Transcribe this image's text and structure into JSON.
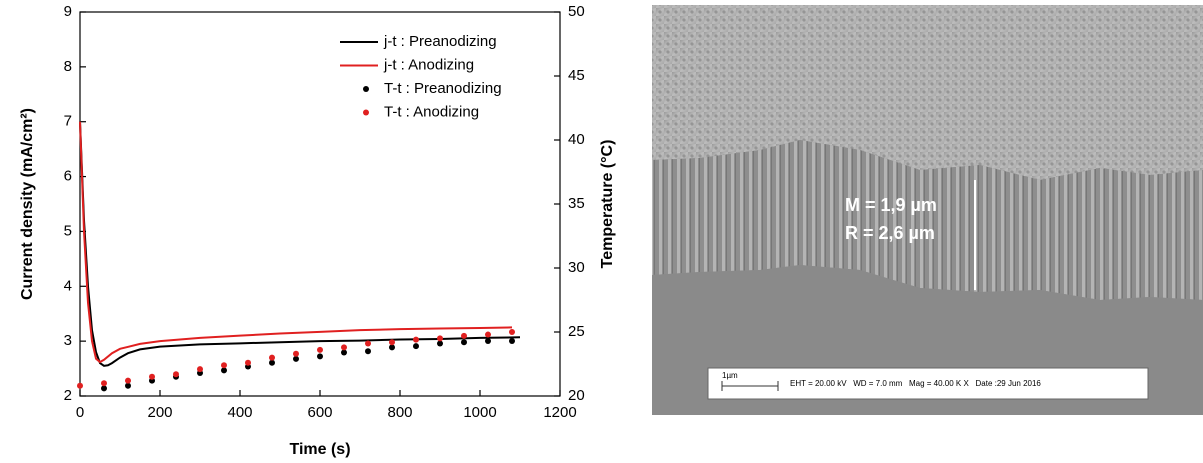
{
  "chart_data": {
    "type": "line",
    "xlabel": "Time (s)",
    "ylabel": "Current density (mA/cm²)",
    "y2label": "Temperature (°C)",
    "xlim": [
      0,
      1200
    ],
    "xticks": [
      0,
      200,
      400,
      600,
      800,
      1000,
      1200
    ],
    "ylim": [
      2,
      9
    ],
    "yticks": [
      2,
      3,
      4,
      5,
      6,
      7,
      8,
      9
    ],
    "y2lim": [
      20,
      50
    ],
    "y2ticks": [
      20,
      25,
      30,
      35,
      40,
      45,
      50
    ],
    "legend": "upper right",
    "series": [
      {
        "name": "j-t : Preanodizing",
        "color": "#000000",
        "type": "line",
        "x": [
          0,
          10,
          20,
          30,
          40,
          50,
          60,
          70,
          80,
          100,
          120,
          150,
          200,
          300,
          400,
          500,
          600,
          700,
          800,
          900,
          1000,
          1100
        ],
        "values": [
          7.0,
          5.2,
          4.0,
          3.2,
          2.8,
          2.6,
          2.55,
          2.56,
          2.6,
          2.7,
          2.78,
          2.85,
          2.9,
          2.94,
          2.96,
          2.98,
          3.0,
          3.01,
          3.03,
          3.04,
          3.06,
          3.07
        ]
      },
      {
        "name": "j-t : Anodizing",
        "color": "#e02020",
        "type": "line",
        "x": [
          0,
          10,
          20,
          30,
          40,
          50,
          60,
          80,
          100,
          150,
          200,
          300,
          400,
          500,
          600,
          700,
          800,
          900,
          1000,
          1080
        ],
        "values": [
          7.0,
          5.0,
          3.7,
          3.0,
          2.68,
          2.62,
          2.66,
          2.78,
          2.86,
          2.95,
          3.0,
          3.06,
          3.1,
          3.14,
          3.17,
          3.2,
          3.22,
          3.23,
          3.24,
          3.25
        ]
      },
      {
        "name": "T-t : Preanodizing",
        "color": "#000000",
        "type": "scatter",
        "axis": "y2",
        "x": [
          60,
          120,
          180,
          240,
          300,
          360,
          420,
          480,
          540,
          600,
          660,
          720,
          780,
          840,
          900,
          960,
          1020,
          1080
        ],
        "values": [
          20.6,
          20.8,
          21.2,
          21.5,
          21.8,
          22.0,
          22.3,
          22.6,
          22.9,
          23.1,
          23.4,
          23.5,
          23.8,
          23.9,
          24.1,
          24.2,
          24.3,
          24.3
        ]
      },
      {
        "name": "T-t : Anodizing",
        "color": "#e02020",
        "type": "scatter",
        "axis": "y2",
        "x": [
          0,
          60,
          120,
          180,
          240,
          300,
          360,
          420,
          480,
          540,
          600,
          660,
          720,
          780,
          840,
          900,
          960,
          1020,
          1080
        ],
        "values": [
          20.8,
          21.0,
          21.2,
          21.5,
          21.7,
          22.1,
          22.4,
          22.6,
          23.0,
          23.3,
          23.6,
          23.8,
          24.1,
          24.2,
          24.4,
          24.5,
          24.7,
          24.8,
          25.0
        ]
      }
    ]
  },
  "sem_image": {
    "annotations": [
      "M = 1,9 µm",
      "R = 2,6 µm"
    ],
    "scale_bar": "1µm",
    "info": "EHT = 20.00 kV   WD = 7.0 mm   Mag = 40.00 K X   Date :29 Jun 2016"
  }
}
